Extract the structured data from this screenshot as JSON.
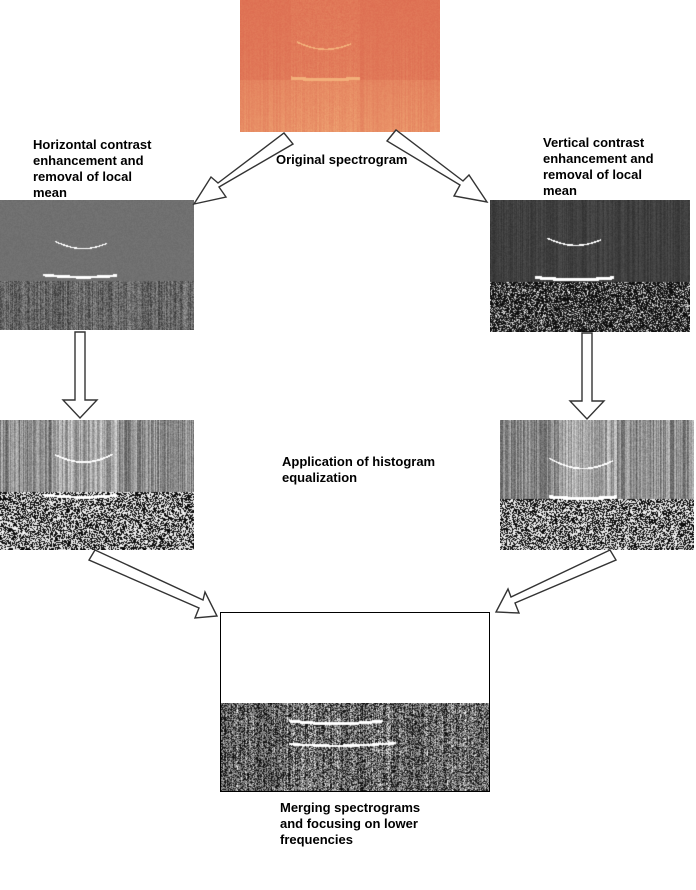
{
  "labels": {
    "original": "Original spectrogram",
    "horizontal": [
      "Horizontal contrast",
      "enhancement and",
      "removal of local",
      "mean"
    ],
    "vertical": [
      "Vertical contrast",
      "enhancement and",
      "removal of local",
      "mean"
    ],
    "histogram": [
      "Application of histogram",
      "equalization"
    ],
    "merging": [
      "Merging spectrograms",
      "and focusing on lower",
      "frequencies"
    ]
  },
  "colors": {
    "original_base": "#d9614a",
    "original_light": "#f3b07a",
    "arrow_stroke": "#333333",
    "arrow_fill": "#ffffff"
  }
}
